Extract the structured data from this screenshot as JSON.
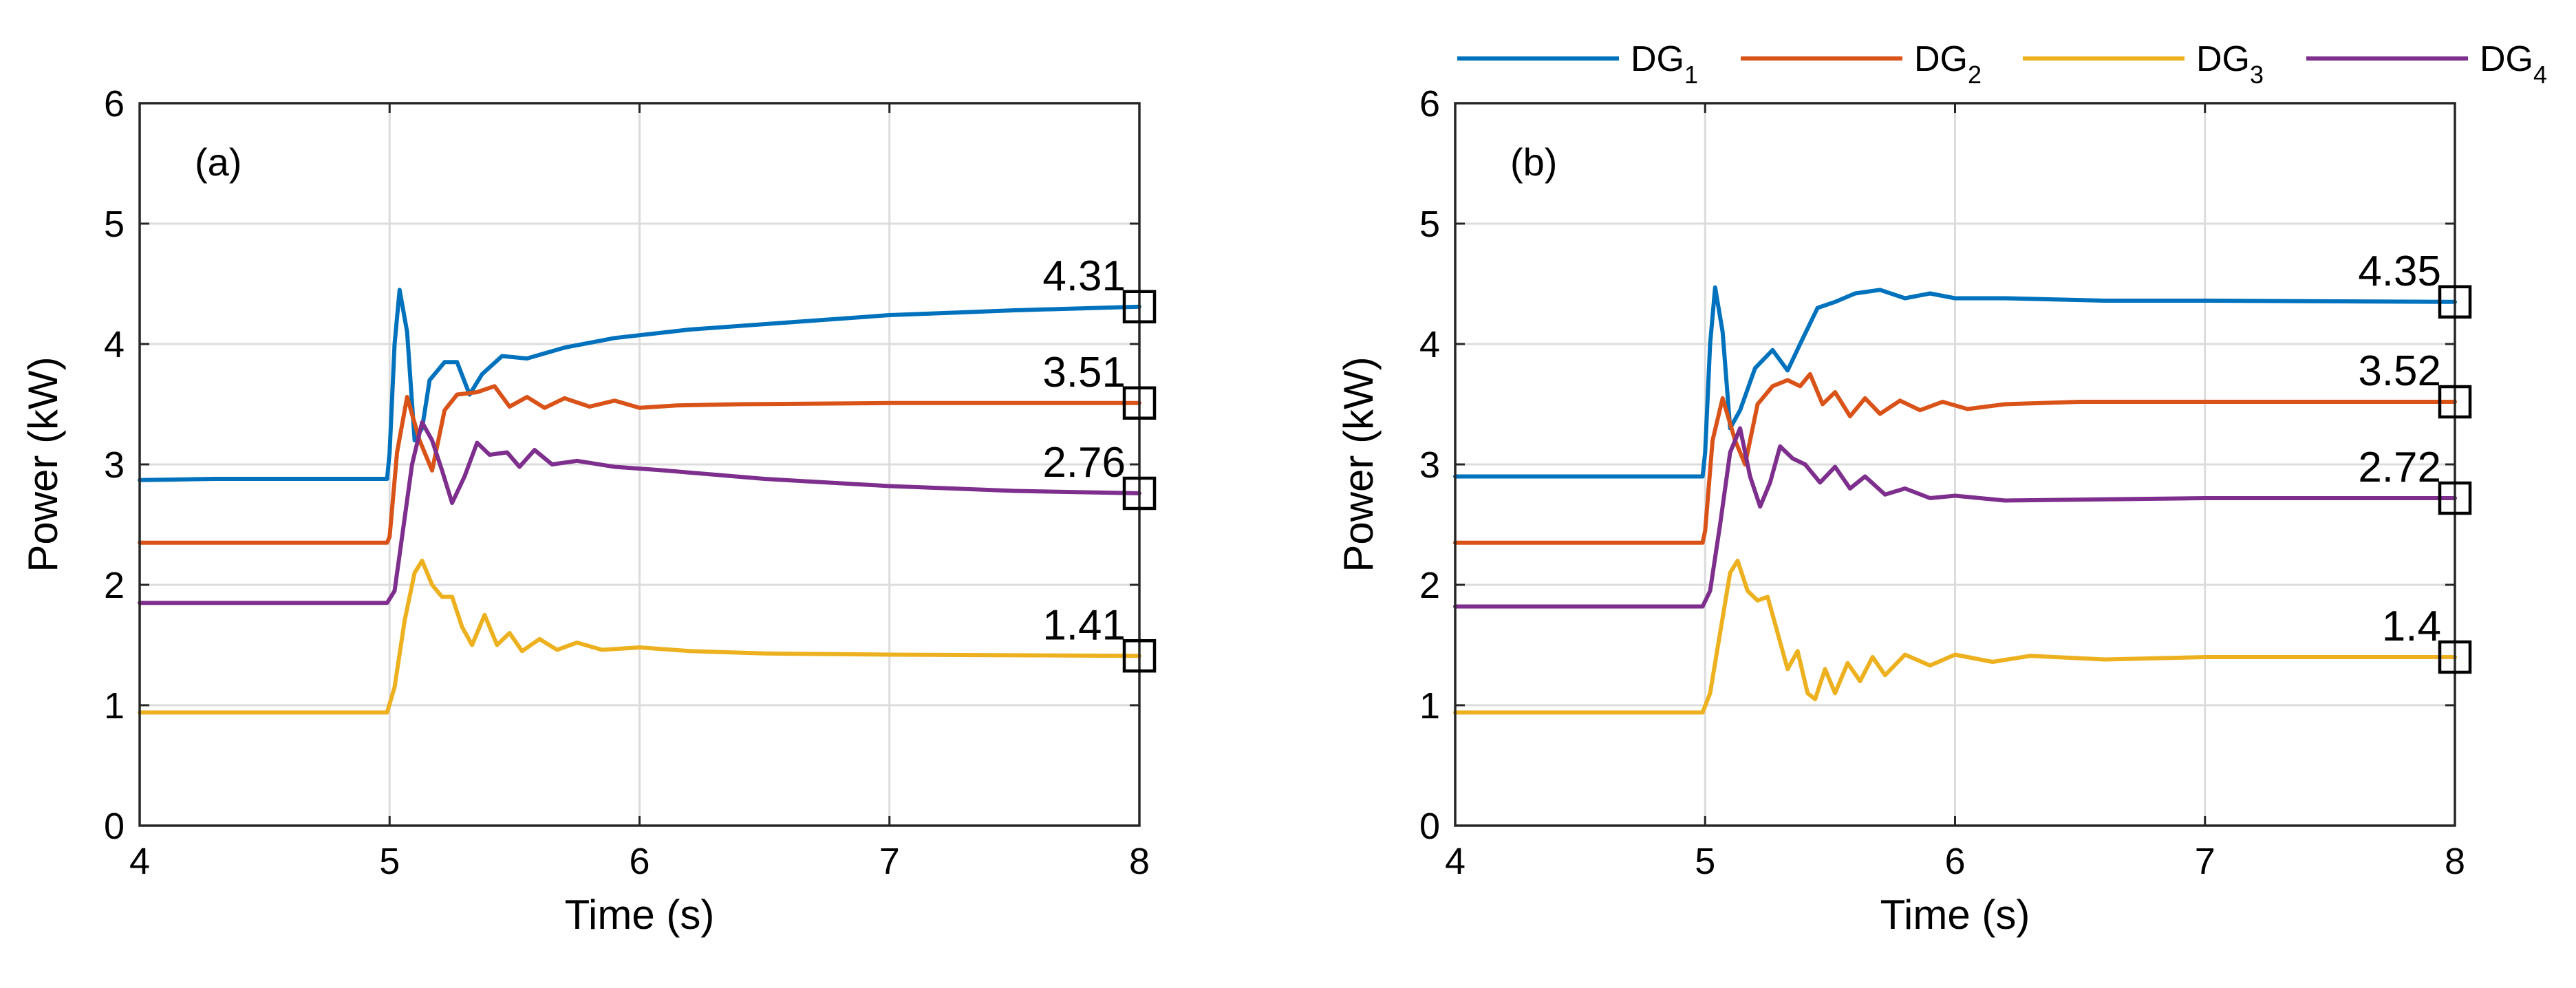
{
  "chart_data": [
    {
      "type": "line",
      "panel_label": "(a)",
      "xlabel": "Time (s)",
      "ylabel": "Power (kW)",
      "xlim": [
        4,
        8
      ],
      "ylim": [
        0,
        6
      ],
      "xticks": [
        "4",
        "5",
        "6",
        "7",
        "8"
      ],
      "yticks": [
        "0",
        "1",
        "2",
        "3",
        "4",
        "5",
        "6"
      ],
      "grid": true,
      "series": [
        {
          "name": "DG1",
          "color": "#0072BD",
          "points": [
            [
              4,
              2.87
            ],
            [
              4.3,
              2.88
            ],
            [
              4.7,
              2.88
            ],
            [
              4.99,
              2.88
            ],
            [
              5.0,
              3.1
            ],
            [
              5.02,
              4.0
            ],
            [
              5.04,
              4.45
            ],
            [
              5.07,
              4.1
            ],
            [
              5.1,
              3.2
            ],
            [
              5.13,
              3.3
            ],
            [
              5.16,
              3.7
            ],
            [
              5.22,
              3.85
            ],
            [
              5.27,
              3.85
            ],
            [
              5.32,
              3.58
            ],
            [
              5.37,
              3.75
            ],
            [
              5.45,
              3.9
            ],
            [
              5.55,
              3.88
            ],
            [
              5.7,
              3.97
            ],
            [
              5.9,
              4.05
            ],
            [
              6.2,
              4.12
            ],
            [
              6.6,
              4.18
            ],
            [
              7.0,
              4.24
            ],
            [
              7.5,
              4.28
            ],
            [
              8.0,
              4.31
            ]
          ]
        },
        {
          "name": "DG2",
          "color": "#D95319",
          "points": [
            [
              4,
              2.35
            ],
            [
              4.99,
              2.35
            ],
            [
              5.0,
              2.4
            ],
            [
              5.03,
              3.1
            ],
            [
              5.07,
              3.56
            ],
            [
              5.12,
              3.2
            ],
            [
              5.17,
              2.95
            ],
            [
              5.22,
              3.45
            ],
            [
              5.27,
              3.58
            ],
            [
              5.35,
              3.6
            ],
            [
              5.42,
              3.65
            ],
            [
              5.48,
              3.48
            ],
            [
              5.55,
              3.56
            ],
            [
              5.62,
              3.47
            ],
            [
              5.7,
              3.55
            ],
            [
              5.8,
              3.48
            ],
            [
              5.9,
              3.53
            ],
            [
              6.0,
              3.47
            ],
            [
              6.15,
              3.49
            ],
            [
              6.4,
              3.5
            ],
            [
              7.0,
              3.51
            ],
            [
              8.0,
              3.51
            ]
          ]
        },
        {
          "name": "DG3",
          "color": "#EDB120",
          "points": [
            [
              4,
              0.94
            ],
            [
              4.99,
              0.94
            ],
            [
              5.02,
              1.15
            ],
            [
              5.06,
              1.7
            ],
            [
              5.1,
              2.1
            ],
            [
              5.13,
              2.2
            ],
            [
              5.17,
              2.0
            ],
            [
              5.21,
              1.9
            ],
            [
              5.25,
              1.9
            ],
            [
              5.29,
              1.65
            ],
            [
              5.33,
              1.5
            ],
            [
              5.38,
              1.75
            ],
            [
              5.43,
              1.5
            ],
            [
              5.48,
              1.6
            ],
            [
              5.53,
              1.45
            ],
            [
              5.6,
              1.55
            ],
            [
              5.67,
              1.46
            ],
            [
              5.75,
              1.52
            ],
            [
              5.85,
              1.46
            ],
            [
              6.0,
              1.48
            ],
            [
              6.2,
              1.45
            ],
            [
              6.5,
              1.43
            ],
            [
              7.0,
              1.42
            ],
            [
              8.0,
              1.41
            ]
          ]
        },
        {
          "name": "DG4",
          "color": "#7E2F8E",
          "points": [
            [
              4,
              1.85
            ],
            [
              4.99,
              1.85
            ],
            [
              5.02,
              1.95
            ],
            [
              5.05,
              2.4
            ],
            [
              5.09,
              3.0
            ],
            [
              5.13,
              3.35
            ],
            [
              5.17,
              3.2
            ],
            [
              5.21,
              2.95
            ],
            [
              5.25,
              2.68
            ],
            [
              5.3,
              2.9
            ],
            [
              5.35,
              3.18
            ],
            [
              5.4,
              3.08
            ],
            [
              5.47,
              3.1
            ],
            [
              5.52,
              2.98
            ],
            [
              5.58,
              3.12
            ],
            [
              5.65,
              3.0
            ],
            [
              5.75,
              3.03
            ],
            [
              5.9,
              2.98
            ],
            [
              6.1,
              2.95
            ],
            [
              6.5,
              2.88
            ],
            [
              7.0,
              2.82
            ],
            [
              7.5,
              2.78
            ],
            [
              8.0,
              2.76
            ]
          ]
        }
      ],
      "annotations": [
        {
          "label": "4.31",
          "x": 8,
          "y": 4.31
        },
        {
          "label": "3.51",
          "x": 8,
          "y": 3.51
        },
        {
          "label": "2.76",
          "x": 8,
          "y": 2.76
        },
        {
          "label": "1.41",
          "x": 8,
          "y": 1.41
        }
      ]
    },
    {
      "type": "line",
      "panel_label": "(b)",
      "xlabel": "Time (s)",
      "ylabel": "Power (kW)",
      "xlim": [
        4,
        8
      ],
      "ylim": [
        0,
        6
      ],
      "xticks": [
        "4",
        "5",
        "6",
        "7",
        "8"
      ],
      "yticks": [
        "0",
        "1",
        "2",
        "3",
        "4",
        "5",
        "6"
      ],
      "grid": true,
      "series": [
        {
          "name": "DG1",
          "color": "#0072BD",
          "points": [
            [
              4,
              2.9
            ],
            [
              4.99,
              2.9
            ],
            [
              5.0,
              3.1
            ],
            [
              5.02,
              4.0
            ],
            [
              5.04,
              4.47
            ],
            [
              5.07,
              4.1
            ],
            [
              5.1,
              3.3
            ],
            [
              5.14,
              3.45
            ],
            [
              5.2,
              3.8
            ],
            [
              5.27,
              3.95
            ],
            [
              5.33,
              3.78
            ],
            [
              5.38,
              4.0
            ],
            [
              5.45,
              4.3
            ],
            [
              5.52,
              4.35
            ],
            [
              5.6,
              4.42
            ],
            [
              5.7,
              4.45
            ],
            [
              5.8,
              4.38
            ],
            [
              5.9,
              4.42
            ],
            [
              6.0,
              4.38
            ],
            [
              6.2,
              4.38
            ],
            [
              6.6,
              4.36
            ],
            [
              7.0,
              4.36
            ],
            [
              8.0,
              4.35
            ]
          ]
        },
        {
          "name": "DG2",
          "color": "#D95319",
          "points": [
            [
              4,
              2.35
            ],
            [
              4.99,
              2.35
            ],
            [
              5.0,
              2.45
            ],
            [
              5.03,
              3.2
            ],
            [
              5.07,
              3.55
            ],
            [
              5.12,
              3.2
            ],
            [
              5.16,
              3.0
            ],
            [
              5.21,
              3.5
            ],
            [
              5.27,
              3.65
            ],
            [
              5.33,
              3.7
            ],
            [
              5.38,
              3.65
            ],
            [
              5.42,
              3.75
            ],
            [
              5.47,
              3.5
            ],
            [
              5.52,
              3.6
            ],
            [
              5.58,
              3.4
            ],
            [
              5.64,
              3.55
            ],
            [
              5.7,
              3.42
            ],
            [
              5.78,
              3.53
            ],
            [
              5.86,
              3.45
            ],
            [
              5.95,
              3.52
            ],
            [
              6.05,
              3.46
            ],
            [
              6.2,
              3.5
            ],
            [
              6.5,
              3.52
            ],
            [
              7.0,
              3.52
            ],
            [
              8.0,
              3.52
            ]
          ]
        },
        {
          "name": "DG3",
          "color": "#EDB120",
          "points": [
            [
              4,
              0.94
            ],
            [
              4.99,
              0.94
            ],
            [
              5.02,
              1.1
            ],
            [
              5.06,
              1.6
            ],
            [
              5.1,
              2.1
            ],
            [
              5.13,
              2.2
            ],
            [
              5.17,
              1.95
            ],
            [
              5.21,
              1.87
            ],
            [
              5.25,
              1.9
            ],
            [
              5.29,
              1.6
            ],
            [
              5.33,
              1.3
            ],
            [
              5.37,
              1.45
            ],
            [
              5.41,
              1.1
            ],
            [
              5.44,
              1.05
            ],
            [
              5.48,
              1.3
            ],
            [
              5.52,
              1.1
            ],
            [
              5.57,
              1.35
            ],
            [
              5.62,
              1.2
            ],
            [
              5.67,
              1.4
            ],
            [
              5.72,
              1.25
            ],
            [
              5.8,
              1.42
            ],
            [
              5.9,
              1.33
            ],
            [
              6.0,
              1.42
            ],
            [
              6.15,
              1.36
            ],
            [
              6.3,
              1.41
            ],
            [
              6.6,
              1.38
            ],
            [
              7.0,
              1.4
            ],
            [
              8.0,
              1.4
            ]
          ]
        },
        {
          "name": "DG4",
          "color": "#7E2F8E",
          "points": [
            [
              4,
              1.82
            ],
            [
              4.99,
              1.82
            ],
            [
              5.02,
              1.95
            ],
            [
              5.06,
              2.5
            ],
            [
              5.1,
              3.1
            ],
            [
              5.14,
              3.3
            ],
            [
              5.18,
              2.9
            ],
            [
              5.22,
              2.65
            ],
            [
              5.26,
              2.85
            ],
            [
              5.3,
              3.15
            ],
            [
              5.35,
              3.05
            ],
            [
              5.4,
              3.0
            ],
            [
              5.46,
              2.85
            ],
            [
              5.52,
              2.98
            ],
            [
              5.58,
              2.8
            ],
            [
              5.64,
              2.9
            ],
            [
              5.72,
              2.75
            ],
            [
              5.8,
              2.8
            ],
            [
              5.9,
              2.72
            ],
            [
              6.0,
              2.74
            ],
            [
              6.2,
              2.7
            ],
            [
              6.6,
              2.71
            ],
            [
              7.0,
              2.72
            ],
            [
              8.0,
              2.72
            ]
          ]
        }
      ],
      "annotations": [
        {
          "label": "4.35",
          "x": 8,
          "y": 4.35
        },
        {
          "label": "3.52",
          "x": 8,
          "y": 3.52
        },
        {
          "label": "2.72",
          "x": 8,
          "y": 2.72
        },
        {
          "label": "1.4",
          "x": 8,
          "y": 1.4
        }
      ]
    }
  ],
  "legend": [
    {
      "base": "DG",
      "sub": "1",
      "color": "#0072BD"
    },
    {
      "base": "DG",
      "sub": "2",
      "color": "#D95319"
    },
    {
      "base": "DG",
      "sub": "3",
      "color": "#EDB120"
    },
    {
      "base": "DG",
      "sub": "4",
      "color": "#7E2F8E"
    }
  ]
}
